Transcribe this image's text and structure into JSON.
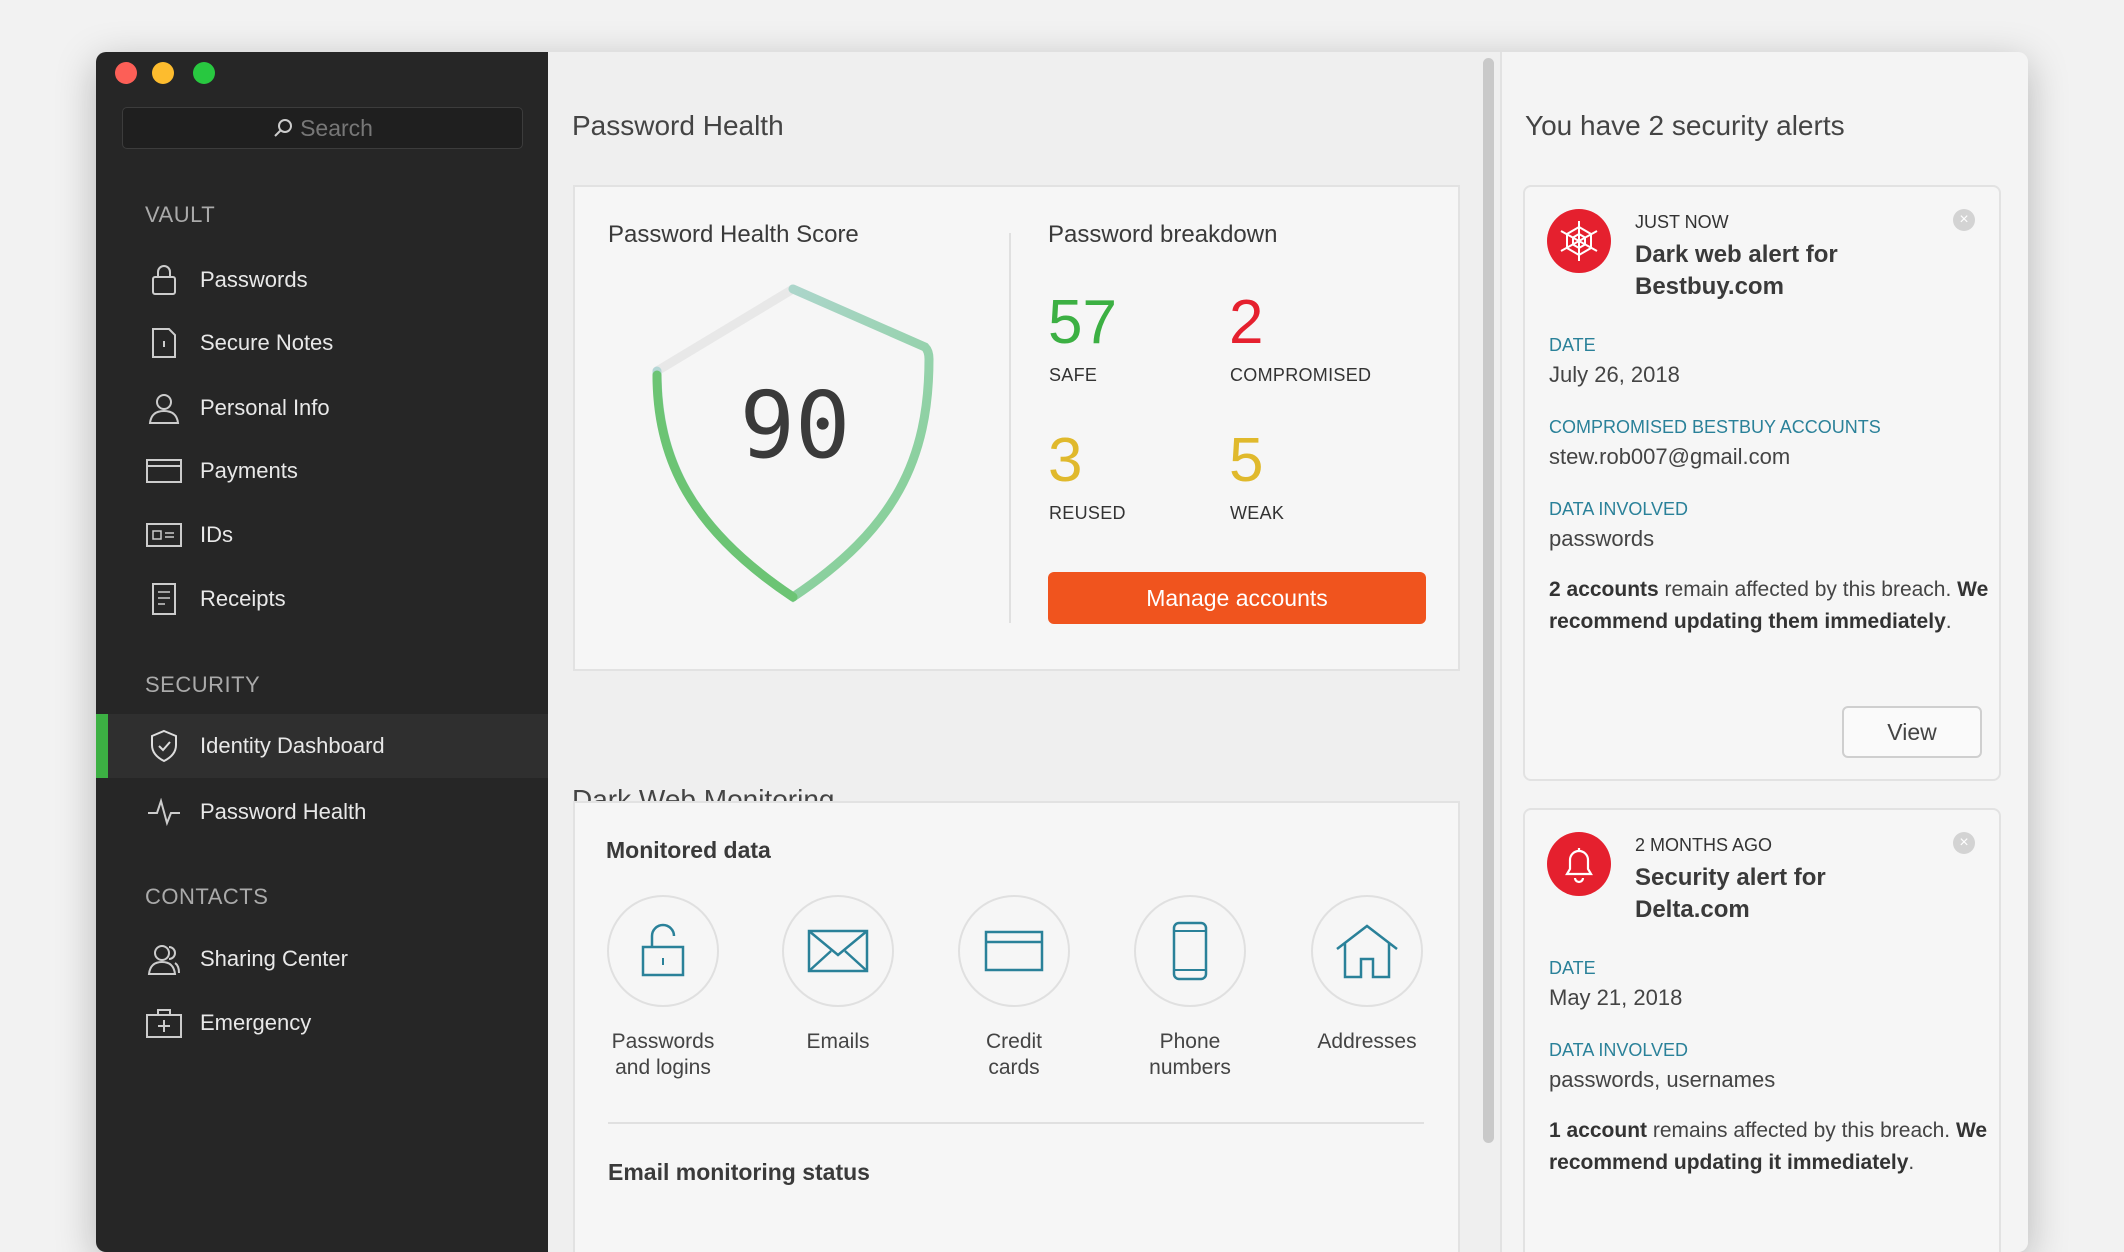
{
  "colors": {
    "accent": "#f0541e",
    "safe": "#3cb043",
    "compromised": "#e5202e",
    "warn": "#e0b92c",
    "label_teal": "#2a8199",
    "active_bar": "#3cb043"
  },
  "search": {
    "placeholder": "Search",
    "icon": "search-icon"
  },
  "sidebar": {
    "vault_heading": "VAULT",
    "vault": [
      {
        "label": "Passwords",
        "icon": "lock-icon"
      },
      {
        "label": "Secure Notes",
        "icon": "note-icon"
      },
      {
        "label": "Personal Info",
        "icon": "person-icon"
      },
      {
        "label": "Payments",
        "icon": "card-icon"
      },
      {
        "label": "IDs",
        "icon": "id-icon"
      },
      {
        "label": "Receipts",
        "icon": "receipt-icon"
      }
    ],
    "security_heading": "SECURITY",
    "security": [
      {
        "label": "Identity Dashboard",
        "icon": "shield-icon",
        "active": true
      },
      {
        "label": "Password Health",
        "icon": "pulse-icon"
      }
    ],
    "contacts_heading": "CONTACTS",
    "contacts": [
      {
        "label": "Sharing Center",
        "icon": "people-icon"
      },
      {
        "label": "Emergency",
        "icon": "medkit-icon"
      }
    ]
  },
  "main": {
    "title": "Password Health",
    "score_title": "Password Health Score",
    "score": "90",
    "score_progress": 90,
    "breakdown_title": "Password breakdown",
    "breakdown": [
      {
        "value": "57",
        "label": "SAFE"
      },
      {
        "value": "2",
        "label": "COMPROMISED"
      },
      {
        "value": "3",
        "label": "REUSED"
      },
      {
        "value": "5",
        "label": "WEAK"
      }
    ],
    "manage_label": "Manage accounts",
    "dark_web_title": "Dark Web Monitoring",
    "monitored_title": "Monitored data",
    "monitored": [
      {
        "label1": "Passwords",
        "label2": "and logins",
        "icon": "lock-icon"
      },
      {
        "label1": "Emails",
        "label2": "",
        "icon": "envelope-icon"
      },
      {
        "label1": "Credit",
        "label2": "cards",
        "icon": "card-icon"
      },
      {
        "label1": "Phone",
        "label2": "numbers",
        "icon": "phone-icon"
      },
      {
        "label1": "Addresses",
        "label2": "",
        "icon": "house-icon"
      }
    ],
    "email_status_title": "Email monitoring status"
  },
  "alerts": {
    "title": "You have 2 security alerts",
    "items": [
      {
        "when": "JUST NOW",
        "title": "Dark web alert for Bestbuy.com",
        "icon": "spiderweb-icon",
        "date_label": "DATE",
        "date": "July 26, 2018",
        "accounts_label": "COMPROMISED BESTBUY ACCOUNTS",
        "accounts": "stew.rob007@gmail.com",
        "data_label": "DATA INVOLVED",
        "data": "passwords",
        "p1": "2 accounts",
        "p2": " remain affected by this breach. ",
        "p3": "We recommend updating them immediately",
        "p4": ".",
        "view_label": "View"
      },
      {
        "when": "2 MONTHS AGO",
        "title": "Security alert for Delta.com",
        "icon": "bell-icon",
        "date_label": "DATE",
        "date": "May 21, 2018",
        "data_label": "DATA INVOLVED",
        "data": "passwords, usernames",
        "p1": "1 account",
        "p2": " remains affected by this breach. ",
        "p3": "We recommend updating it immediately",
        "p4": "."
      }
    ]
  }
}
